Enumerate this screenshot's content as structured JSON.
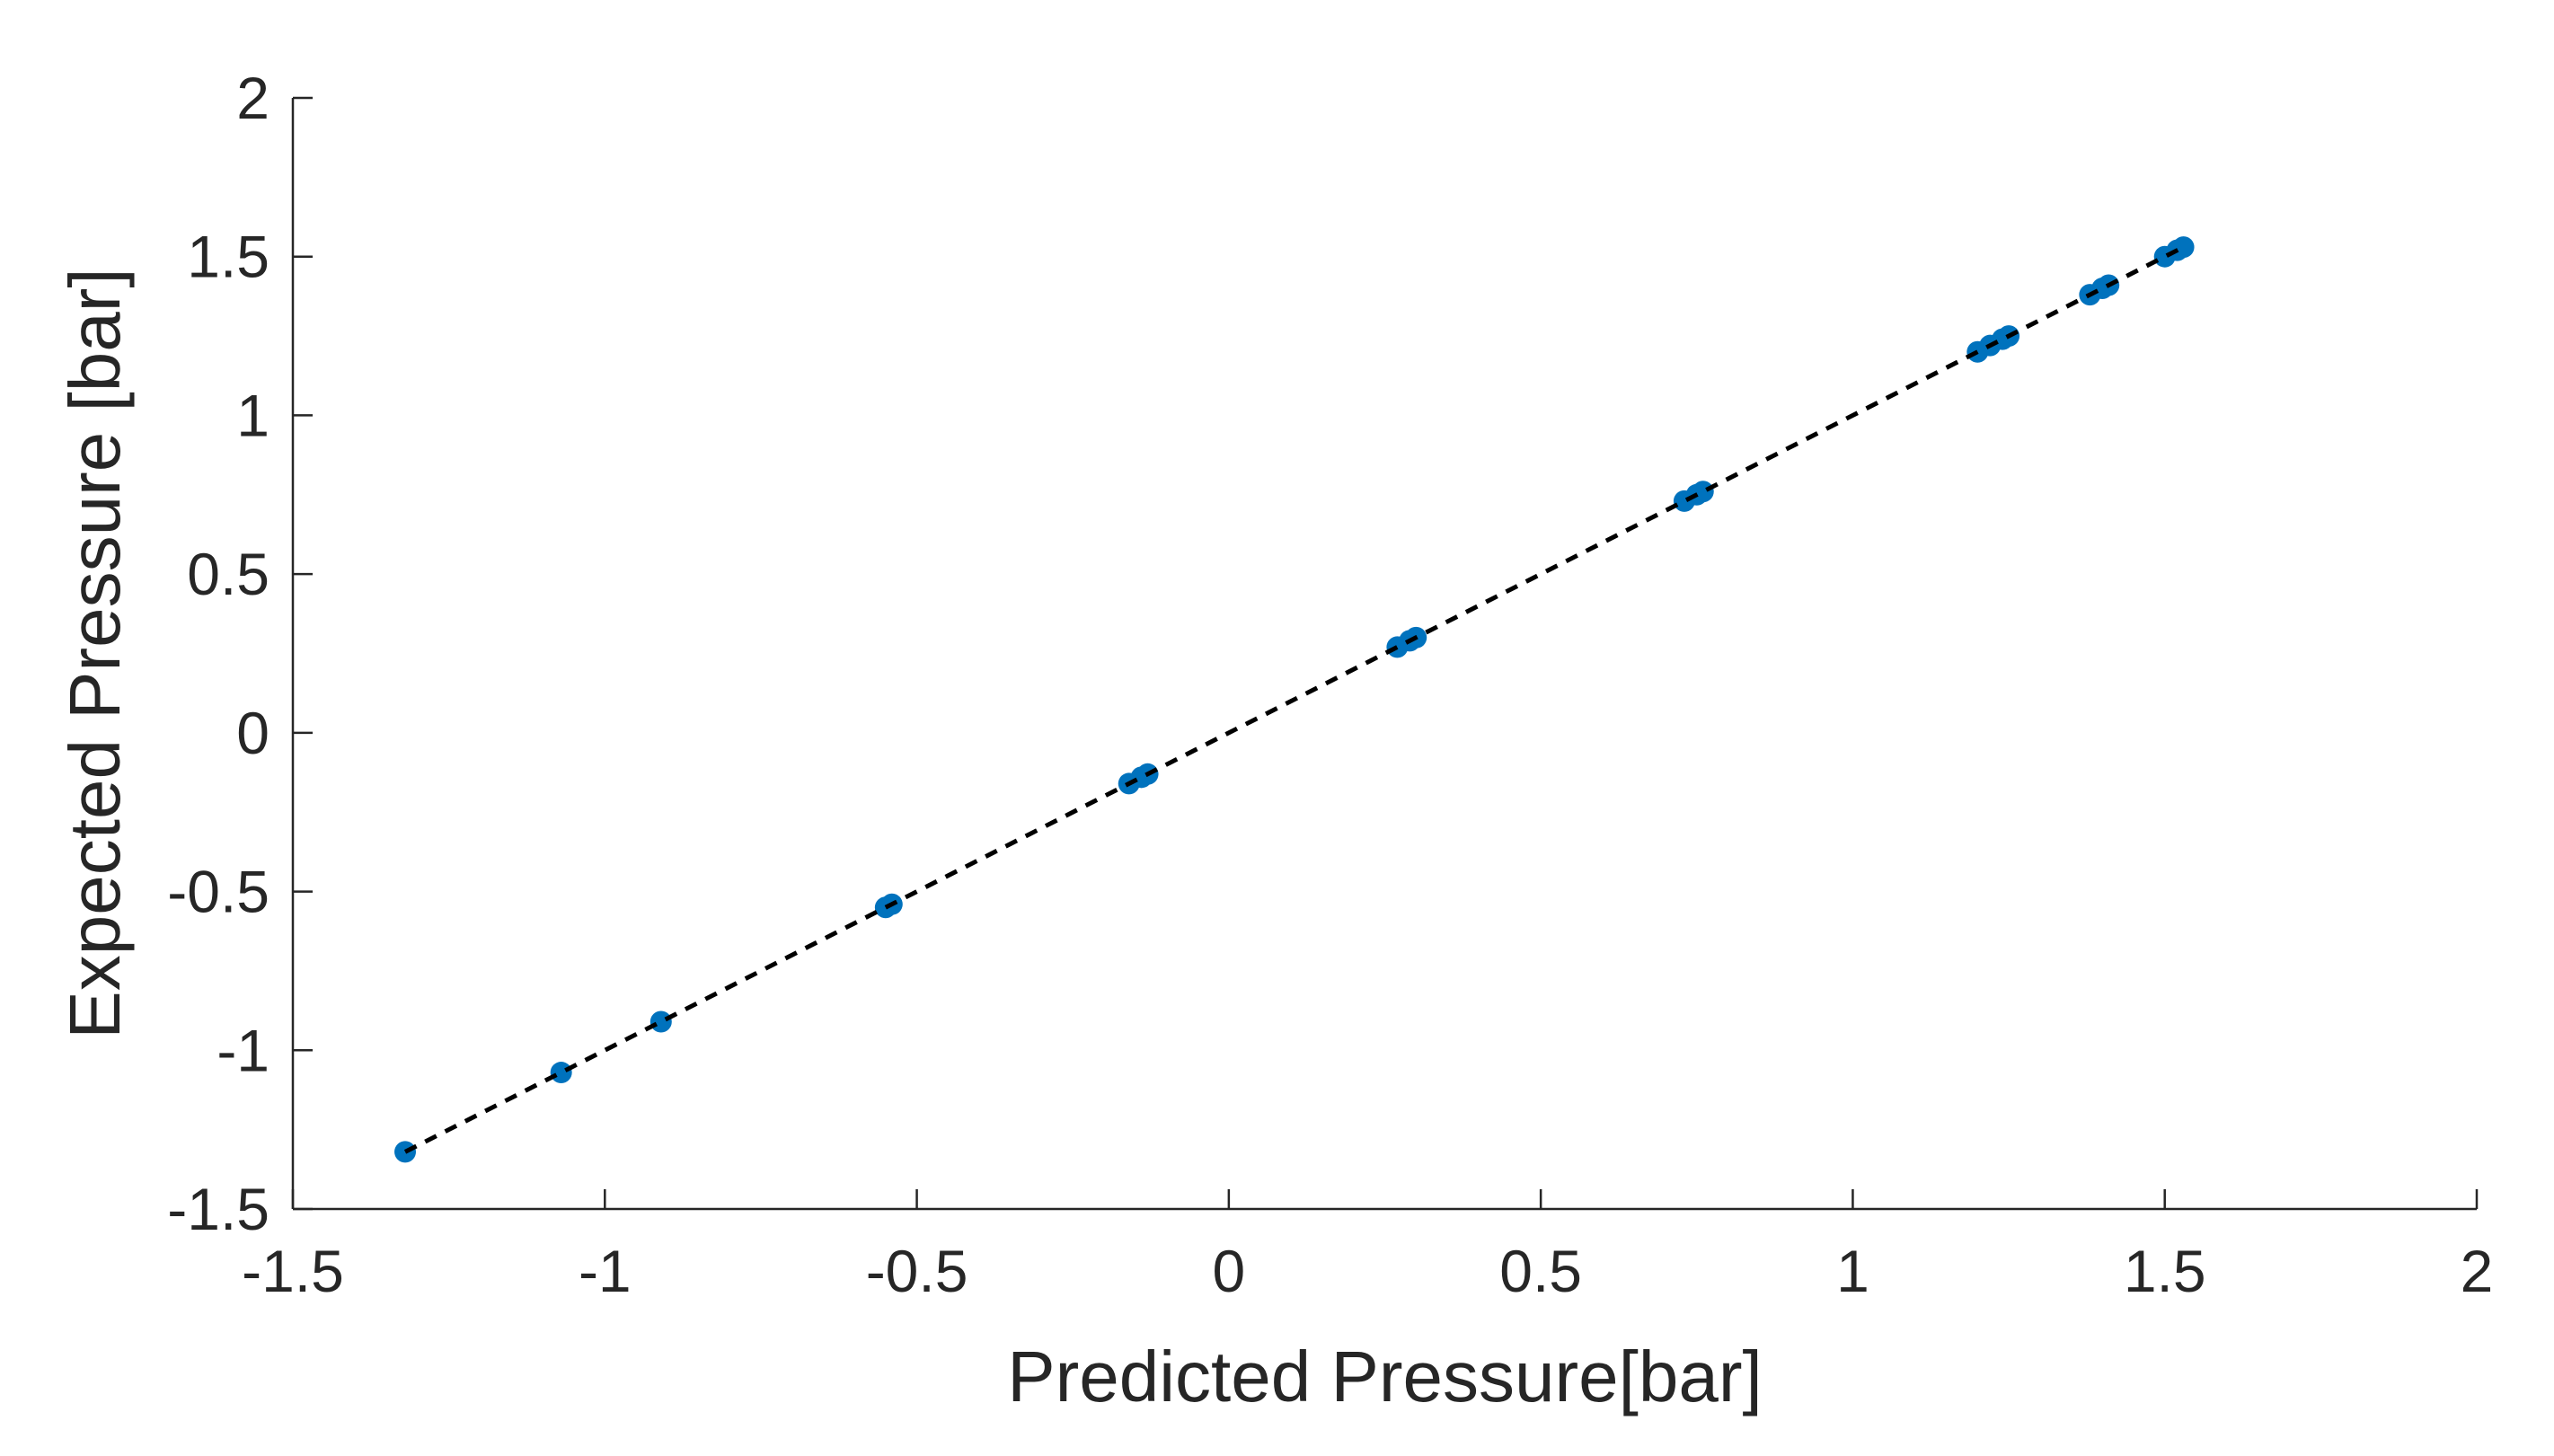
{
  "chart_data": {
    "type": "scatter",
    "xlabel": "Predicted Pressure[bar]",
    "ylabel": "Expected Pressure [bar]",
    "xlim": [
      -1.5,
      2
    ],
    "ylim": [
      -1.5,
      2
    ],
    "xticks": [
      -1.5,
      -1,
      -0.5,
      0,
      0.5,
      1,
      1.5,
      2
    ],
    "xtick_labels": [
      "-1.5",
      "-1",
      "-0.5",
      "0",
      "0.5",
      "1",
      "1.5",
      "2"
    ],
    "yticks": [
      -1.5,
      -1,
      -0.5,
      0,
      0.5,
      1,
      1.5,
      2
    ],
    "ytick_labels": [
      "-1.5",
      "-1",
      "-0.5",
      "0",
      "0.5",
      "1",
      "1.5",
      "2"
    ],
    "grid": false,
    "series": [
      {
        "marker_color": "#0072BD",
        "x": [
          -1.32,
          -1.07,
          -0.91,
          -0.55,
          -0.54,
          -0.16,
          -0.14,
          -0.13,
          0.27,
          0.29,
          0.3,
          0.73,
          0.75,
          0.76,
          1.2,
          1.22,
          1.24,
          1.25,
          1.38,
          1.4,
          1.41,
          1.5,
          1.52,
          1.53
        ],
        "y": [
          -1.32,
          -1.07,
          -0.91,
          -0.55,
          -0.54,
          -0.16,
          -0.14,
          -0.13,
          0.27,
          0.29,
          0.3,
          0.73,
          0.75,
          0.76,
          1.2,
          1.22,
          1.24,
          1.25,
          1.38,
          1.4,
          1.41,
          1.5,
          1.52,
          1.53
        ]
      }
    ],
    "reference_line": {
      "style": "dashed",
      "color": "#000000",
      "x": [
        -1.32,
        1.53
      ],
      "y": [
        -1.32,
        1.53
      ]
    }
  }
}
